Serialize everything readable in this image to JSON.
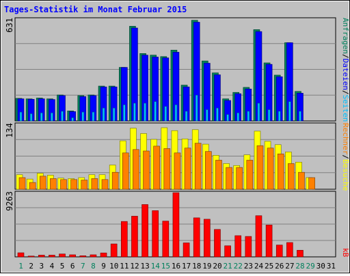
{
  "chart_data": [
    {
      "type": "bar",
      "title": "Tages-Statistik im Monat Februar 2015",
      "ylabel": "631",
      "categories": [
        "1",
        "2",
        "3",
        "4",
        "5",
        "6",
        "7",
        "8",
        "9",
        "10",
        "11",
        "12",
        "13",
        "14",
        "15",
        "16",
        "17",
        "18",
        "19",
        "20",
        "21",
        "22",
        "23",
        "24",
        "25",
        "26",
        "27",
        "28",
        "29",
        "30",
        "31"
      ],
      "ylim": [
        0,
        631
      ],
      "series": [
        {
          "name": "Anfragen",
          "values": [
            140,
            137,
            142,
            137,
            161,
            62,
            157,
            161,
            216,
            216,
            332,
            587,
            418,
            408,
            399,
            439,
            222,
            624,
            372,
            298,
            137,
            177,
            208,
            566,
            360,
            284,
            485,
            183,
            0,
            0,
            0
          ]
        },
        {
          "name": "Dateien",
          "values": [
            137,
            134,
            137,
            133,
            157,
            58,
            151,
            157,
            211,
            211,
            332,
            576,
            408,
            396,
            391,
            426,
            211,
            612,
            358,
            286,
            127,
            169,
            198,
            554,
            351,
            274,
            485,
            172,
            0,
            0,
            0
          ]
        },
        {
          "name": "Seiten",
          "values": [
            55,
            45,
            50,
            50,
            60,
            20,
            55,
            55,
            80,
            80,
            100,
            110,
            110,
            120,
            90,
            100,
            60,
            160,
            70,
            80,
            40,
            50,
            60,
            110,
            70,
            60,
            120,
            60,
            0,
            0,
            0
          ]
        }
      ]
    },
    {
      "type": "bar",
      "ylabel": "134",
      "categories": [
        "1",
        "2",
        "3",
        "4",
        "5",
        "6",
        "7",
        "8",
        "9",
        "10",
        "11",
        "12",
        "13",
        "14",
        "15",
        "16",
        "17",
        "18",
        "19",
        "20",
        "21",
        "22",
        "23",
        "24",
        "25",
        "26",
        "27",
        "28",
        "29",
        "30",
        "31"
      ],
      "ylim": [
        0,
        134
      ],
      "series": [
        {
          "name": "Besuche",
          "values": [
            30,
            21,
            33,
            29,
            23,
            22,
            24,
            30,
            30,
            50,
            100,
            126,
            115,
            103,
            127,
            121,
            104,
            123,
            93,
            70,
            53,
            49,
            71,
            120,
            99,
            92,
            77,
            56,
            24,
            0,
            0
          ]
        },
        {
          "name": "Rechner",
          "values": [
            24,
            14,
            27,
            22,
            20,
            20,
            19,
            22,
            20,
            35,
            75,
            82,
            79,
            89,
            84,
            75,
            85,
            95,
            78,
            60,
            45,
            45,
            60,
            90,
            85,
            73,
            53,
            35,
            24,
            0,
            0
          ]
        }
      ]
    },
    {
      "type": "bar",
      "ylabel": "9263",
      "categories": [
        "1",
        "2",
        "3",
        "4",
        "5",
        "6",
        "7",
        "8",
        "9",
        "10",
        "11",
        "12",
        "13",
        "14",
        "15",
        "16",
        "17",
        "18",
        "19",
        "20",
        "21",
        "22",
        "23",
        "24",
        "25",
        "26",
        "27",
        "28",
        "29",
        "30",
        "31"
      ],
      "ylim": [
        0,
        9263
      ],
      "series": [
        {
          "name": "kB",
          "values": [
            590,
            120,
            250,
            250,
            420,
            300,
            160,
            300,
            570,
            1870,
            5110,
            5870,
            7550,
            6670,
            5160,
            9260,
            2020,
            5630,
            5430,
            3960,
            1600,
            3060,
            2950,
            5940,
            4600,
            1710,
            2070,
            960,
            0,
            0,
            0
          ]
        }
      ]
    }
  ],
  "labels": {
    "title": "Tages-Statistik im Monat Februar 2015",
    "max1": "631",
    "max2": "134",
    "max3": "9263",
    "legend1": [
      {
        "text": "Anfragen",
        "color": "#00805c"
      },
      {
        "text": "/",
        "color": "#000000"
      },
      {
        "text": "Dateien",
        "color": "#0000ff"
      },
      {
        "text": "/",
        "color": "#000000"
      },
      {
        "text": "Seiten",
        "color": "#00c0ff"
      }
    ],
    "legend2": [
      {
        "text": "Rechner",
        "color": "#ff8000"
      },
      {
        "text": "/",
        "color": "#000000"
      },
      {
        "text": "Besuche",
        "color": "#ffff00"
      }
    ],
    "legend3": [
      {
        "text": "kB",
        "color": "#ff0000"
      }
    ]
  },
  "weekend_days": [
    1,
    7,
    8,
    14,
    15,
    21,
    22,
    28,
    29
  ],
  "colors": {
    "background": "#c0c0c0",
    "plot": "#c0c0c0",
    "grid": "#808080",
    "title": "#0000ff",
    "anfragen": "#00805c",
    "dateien": "#0000ff",
    "seiten": "#00c0ff",
    "besuche": "#ffff00",
    "rechner": "#ff8000",
    "kb": "#ff0000",
    "weekday": "#000000",
    "weekend": "#00805c"
  }
}
